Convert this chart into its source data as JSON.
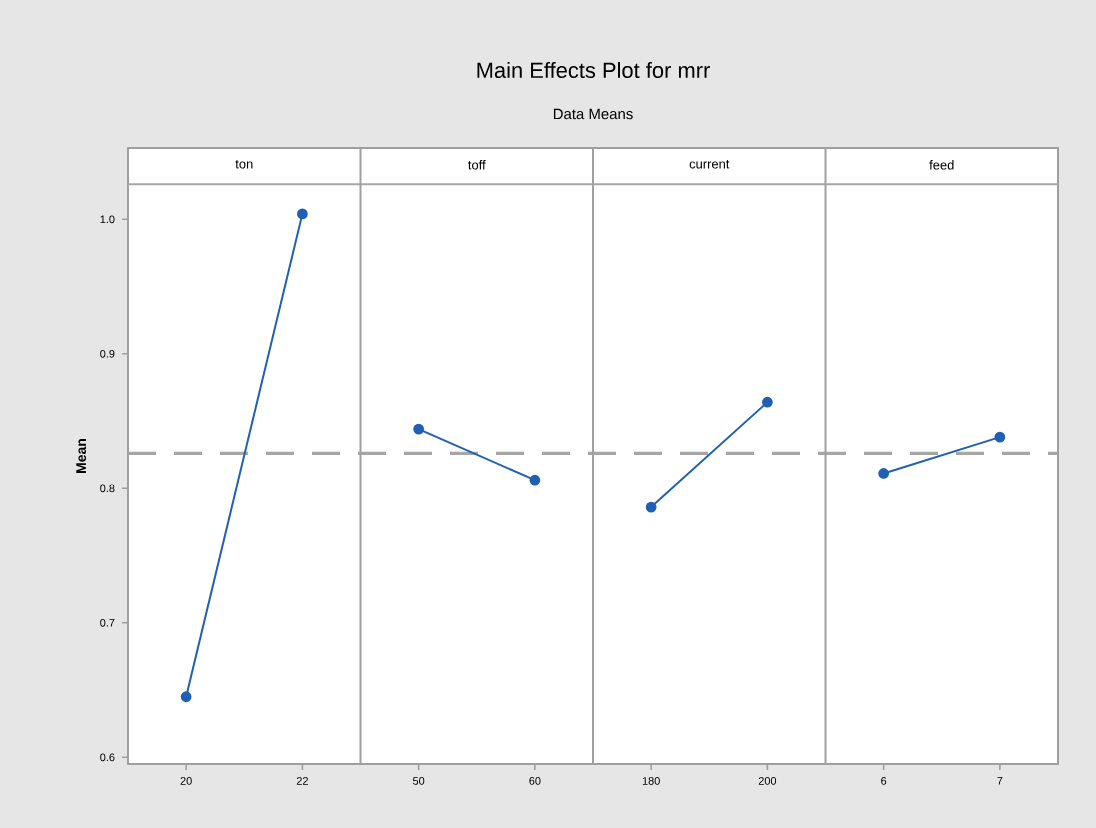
{
  "chart_data": {
    "type": "line",
    "title": "Main Effects Plot for mrr",
    "subtitle": "Data Means",
    "ylabel": "Mean",
    "annotations": [
      "ton",
      "toff",
      "current",
      "feed"
    ],
    "categories": [
      "20",
      "22",
      "50",
      "60",
      "180",
      "200",
      "6",
      "7"
    ],
    "series": [
      {
        "color": "#1f5fb4",
        "values": [
          0.645,
          1.004,
          null,
          null,
          null,
          null,
          null,
          null
        ]
      },
      {
        "color": "#1f5fb4",
        "values": [
          null,
          null,
          0.844,
          0.806,
          null,
          null,
          null,
          null
        ]
      },
      {
        "color": "#1f5fb4",
        "values": [
          null,
          null,
          null,
          null,
          0.786,
          0.864,
          null,
          null
        ]
      },
      {
        "color": "#1f5fb4",
        "values": [
          null,
          null,
          null,
          null,
          null,
          null,
          0.811,
          0.838
        ]
      }
    ],
    "marker": "circle",
    "ylim": [
      0.595,
      1.053
    ],
    "yticks": [
      {
        "value": 0.6,
        "label": "0.6"
      },
      {
        "value": 0.7,
        "label": "0.7"
      },
      {
        "value": 0.8,
        "label": "0.8"
      },
      {
        "value": 0.9,
        "label": "0.9"
      },
      {
        "value": 1.0,
        "label": "1.0"
      }
    ],
    "ref_lines": [
      {
        "axis": "y",
        "value": 0.826,
        "color": "#a6a6a6",
        "line_style": "dashed"
      },
      {
        "axis": "y",
        "value": 1.026,
        "color": "#a6a6a6",
        "line_style": "solid"
      }
    ],
    "grid": false,
    "legend": false
  }
}
